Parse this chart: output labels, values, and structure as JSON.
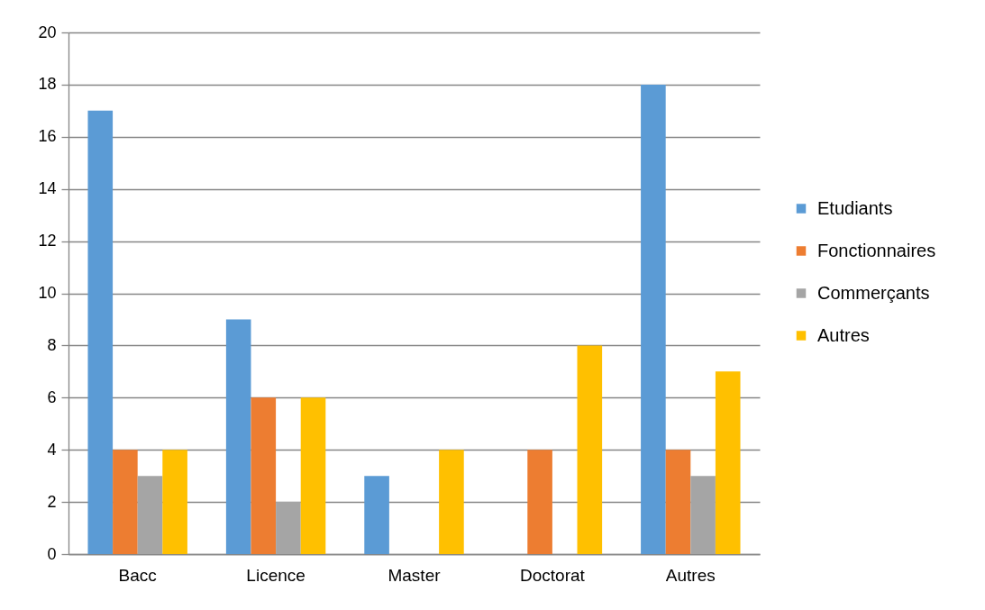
{
  "chart_data": {
    "type": "bar",
    "categories": [
      "Bacc",
      "Licence",
      "Master",
      "Doctorat",
      "Autres"
    ],
    "series": [
      {
        "name": "Etudiants",
        "color": "#5b9bd5",
        "values": [
          17,
          9,
          3,
          0,
          18
        ]
      },
      {
        "name": "Fonctionnaires",
        "color": "#ed7d31",
        "values": [
          4,
          6,
          0,
          4,
          4
        ]
      },
      {
        "name": "Commerçants",
        "color": "#a5a5a5",
        "values": [
          3,
          2,
          0,
          0,
          3
        ]
      },
      {
        "name": "Autres",
        "color": "#ffc000",
        "values": [
          4,
          6,
          4,
          8,
          7
        ]
      }
    ],
    "ylim": [
      0,
      20
    ],
    "yticks": [
      0,
      2,
      4,
      6,
      8,
      10,
      12,
      14,
      16,
      18,
      20
    ],
    "grid": "y",
    "legend": "right"
  }
}
